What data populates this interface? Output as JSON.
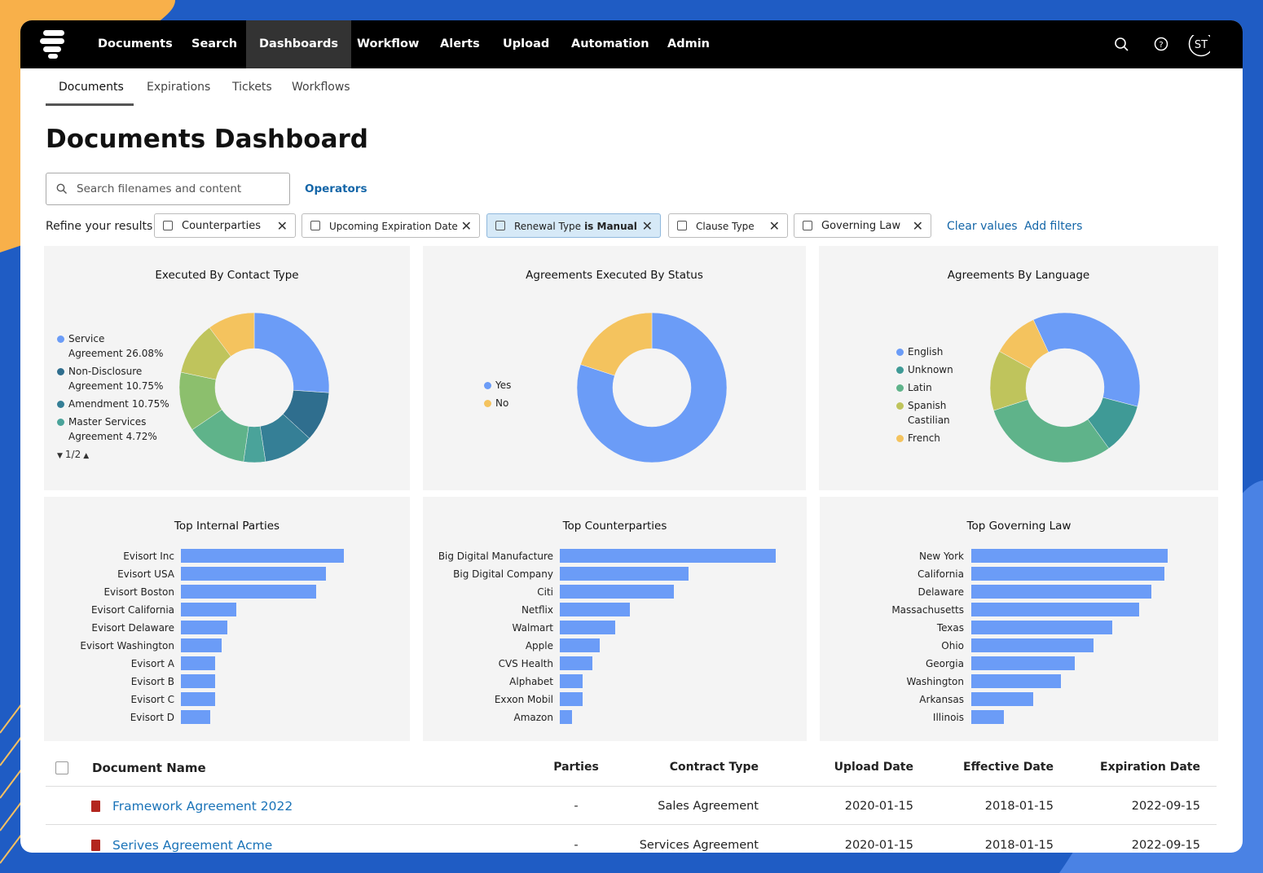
{
  "nav": {
    "items": [
      "Documents",
      "Search",
      "Dashboards",
      "Workflow",
      "Alerts",
      "Upload",
      "Automation",
      "Admin"
    ],
    "active": 2,
    "avatar": "ST"
  },
  "tabs": {
    "items": [
      "Documents",
      "Expirations",
      "Tickets",
      "Workflows"
    ],
    "active": 0
  },
  "page_title": "Documents Dashboard",
  "search": {
    "placeholder": "Search filenames and content",
    "operators": "Operators"
  },
  "filters": {
    "label": "Refine your results",
    "chips": [
      {
        "text": "Counterparties"
      },
      {
        "text": "Upcoming Expiration Date"
      },
      {
        "text": "Renewal Type",
        "emphasis": "is Manual",
        "selected": true
      },
      {
        "text": "Clause Type"
      },
      {
        "text": "Governing Law"
      }
    ],
    "clear": "Clear values",
    "add": "Add filters"
  },
  "chart_data": [
    {
      "type": "pie",
      "title": "Executed By Contact Type",
      "categories": [
        "Service Agreement",
        "Non-Disclosure Agreement",
        "Amendment",
        "Master Services Agreement",
        null,
        null,
        null,
        null
      ],
      "values": [
        26.08,
        10.75,
        10.75,
        4.72,
        13.2,
        12.8,
        11.5,
        10.2
      ],
      "value_labels": [
        "26.08%",
        "10.75%",
        "10.75%",
        "4.72%",
        null,
        null,
        null,
        null
      ],
      "colors": [
        "#6b9cf7",
        "#2f6e8e",
        "#357f96",
        "#4aa39a",
        "#5fb38a",
        "#8cbf6d",
        "#bfc45c",
        "#f4c35e"
      ],
      "legend_page": "1/2"
    },
    {
      "type": "pie",
      "title": "Agreements Executed By Status",
      "categories": [
        "Yes",
        "No"
      ],
      "values": [
        80,
        20
      ],
      "colors": [
        "#6b9cf7",
        "#f4c35e"
      ]
    },
    {
      "type": "pie",
      "title": "Agreements By Language",
      "categories": [
        "English",
        "Unknown",
        "Latin",
        "Spanish Castilian",
        "French"
      ],
      "values": [
        36,
        11,
        30,
        13,
        10
      ],
      "colors": [
        "#6b9cf7",
        "#3f9a96",
        "#5fb38a",
        "#bfc45c",
        "#f4c35e"
      ]
    },
    {
      "type": "bar",
      "title": "Top Internal Parties",
      "color": "#6b9cf7",
      "categories": [
        "Evisort Inc",
        "Evisort USA",
        "Evisort Boston",
        "Evisort California",
        "Evisort Delaware",
        "Evisort Washington",
        "Evisort A",
        "Evisort B",
        "Evisort C",
        "Evisort D"
      ],
      "values": [
        200,
        178,
        166,
        68,
        57,
        50,
        42,
        42,
        42,
        36
      ]
    },
    {
      "type": "bar",
      "title": "Top Counterparties",
      "color": "#6b9cf7",
      "categories": [
        "Big Digital Manufacture",
        "Big Digital Company",
        "Citi",
        "Netflix",
        "Walmart",
        "Apple",
        "CVS Health",
        "Alphabet",
        "Exxon Mobil",
        "Amazon"
      ],
      "values": [
        265,
        158,
        140,
        86,
        68,
        49,
        40,
        28,
        28,
        15
      ]
    },
    {
      "type": "bar",
      "title": "Top Governing Law",
      "color": "#6b9cf7",
      "categories": [
        "New York",
        "California",
        "Delaware",
        "Massachusetts",
        "Texas",
        "Ohio",
        "Georgia",
        "Washington",
        "Arkansas",
        "Illinois"
      ],
      "values": [
        241,
        237,
        221,
        206,
        173,
        150,
        127,
        110,
        76,
        40
      ]
    }
  ],
  "table": {
    "columns": [
      "Document Name",
      "Parties",
      "Contract Type",
      "Upload Date",
      "Effective Date",
      "Expiration Date"
    ],
    "rows": [
      [
        "Framework Agreement 2022",
        "-",
        "Sales Agreement",
        "2020-01-15",
        "2018-01-15",
        "2022-09-15"
      ],
      [
        "Serives Agreement Acme",
        "-",
        "Services Agreement",
        "2020-01-15",
        "2018-01-15",
        "2022-09-15"
      ]
    ]
  }
}
